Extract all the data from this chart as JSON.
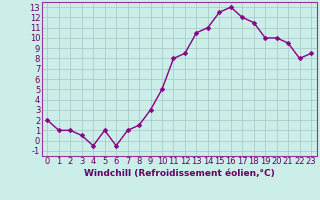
{
  "x": [
    0,
    1,
    2,
    3,
    4,
    5,
    6,
    7,
    8,
    9,
    10,
    11,
    12,
    13,
    14,
    15,
    16,
    17,
    18,
    19,
    20,
    21,
    22,
    23
  ],
  "y": [
    2,
    1,
    1,
    0.5,
    -0.5,
    1,
    -0.5,
    1,
    1.5,
    3,
    5,
    8,
    8.5,
    10.5,
    11,
    12.5,
    13,
    12,
    11.5,
    10,
    10,
    9.5,
    8,
    8.5
  ],
  "line_color": "#880088",
  "marker_color": "#880088",
  "bg_color": "#cceee8",
  "grid_color": "#aacccc",
  "xlabel": "Windchill (Refroidissement éolien,°C)",
  "xlim": [
    -0.5,
    23.5
  ],
  "ylim": [
    -1.5,
    13.5
  ],
  "xticks": [
    0,
    1,
    2,
    3,
    4,
    5,
    6,
    7,
    8,
    9,
    10,
    11,
    12,
    13,
    14,
    15,
    16,
    17,
    18,
    19,
    20,
    21,
    22,
    23
  ],
  "yticks": [
    -1,
    0,
    1,
    2,
    3,
    4,
    5,
    6,
    7,
    8,
    9,
    10,
    11,
    12,
    13
  ],
  "xlabel_fontsize": 6.5,
  "tick_fontsize": 6,
  "line_width": 1.0,
  "marker_size": 2.5,
  "label_color": "#660066"
}
